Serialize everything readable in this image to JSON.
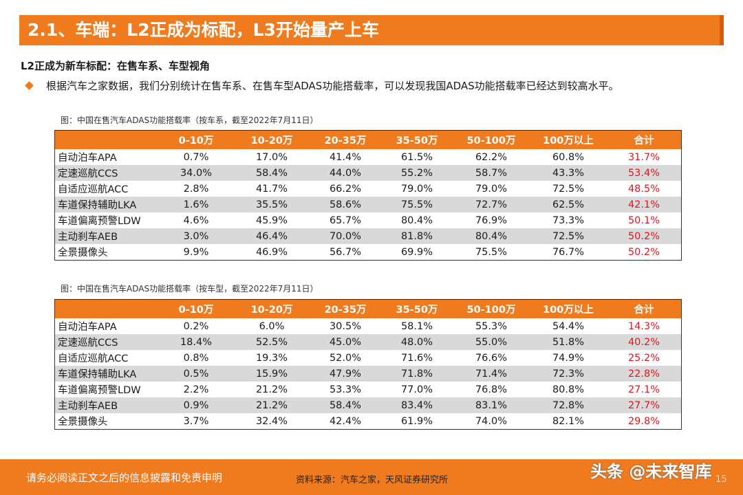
{
  "slide": {
    "title": "2.1、车端：L2正成为标配，L3开始量产上车",
    "subtitle": "L2正成为新车标配：在售车系、车型视角",
    "bullet": "根据汽车之家数据，我们分别统计在售车系、在售车型ADAS功能搭载率，可以发现我国ADAS功能搭载率已经达到较高水平。"
  },
  "colors": {
    "accent": "#f07a1e",
    "total_text": "#e0141e",
    "alt_row": "#d9d9d9"
  },
  "table1": {
    "caption": "图：中国在售汽车ADAS功能搭载率（按车系，截至2022年7月11日）",
    "headers": [
      "",
      "0-10万",
      "10-20万",
      "20-35万",
      "35-50万",
      "50-100万",
      "100万以上",
      "合计"
    ],
    "rows": [
      [
        "自动泊车APA",
        "0.7%",
        "17.0%",
        "41.4%",
        "61.5%",
        "62.2%",
        "60.8%",
        "31.7%"
      ],
      [
        "定速巡航CCS",
        "34.0%",
        "58.4%",
        "44.0%",
        "55.2%",
        "58.7%",
        "43.3%",
        "53.4%"
      ],
      [
        "自适应巡航ACC",
        "2.8%",
        "41.7%",
        "66.2%",
        "79.0%",
        "79.0%",
        "72.5%",
        "48.5%"
      ],
      [
        "车道保持辅助LKA",
        "1.6%",
        "35.5%",
        "58.6%",
        "75.5%",
        "72.7%",
        "62.5%",
        "42.1%"
      ],
      [
        "车道偏离预警LDW",
        "4.6%",
        "45.9%",
        "65.7%",
        "80.4%",
        "76.9%",
        "73.3%",
        "50.1%"
      ],
      [
        "主动刹车AEB",
        "3.0%",
        "46.4%",
        "70.0%",
        "81.8%",
        "80.4%",
        "72.5%",
        "50.2%"
      ],
      [
        "全景摄像头",
        "9.9%",
        "46.9%",
        "56.7%",
        "69.9%",
        "75.5%",
        "76.7%",
        "50.2%"
      ]
    ]
  },
  "table2": {
    "caption": "图：中国在售汽车ADAS功能搭载率（按车型，截至2022年7月11日）",
    "headers": [
      "",
      "0-10万",
      "10-20万",
      "20-35万",
      "35-50万",
      "50-100万",
      "100万以上",
      "合计"
    ],
    "rows": [
      [
        "自动泊车APA",
        "0.2%",
        "6.0%",
        "30.5%",
        "58.1%",
        "55.3%",
        "54.4%",
        "14.3%"
      ],
      [
        "定速巡航CCS",
        "18.4%",
        "52.5%",
        "45.0%",
        "48.0%",
        "55.0%",
        "51.8%",
        "40.2%"
      ],
      [
        "自适应巡航ACC",
        "0.8%",
        "19.3%",
        "52.0%",
        "71.6%",
        "76.6%",
        "74.9%",
        "25.2%"
      ],
      [
        "车道保持辅助LKA",
        "0.5%",
        "15.9%",
        "47.9%",
        "71.8%",
        "71.4%",
        "72.3%",
        "22.8%"
      ],
      [
        "车道偏离预警LDW",
        "2.2%",
        "21.2%",
        "53.3%",
        "77.0%",
        "76.8%",
        "80.8%",
        "27.1%"
      ],
      [
        "主动刹车AEB",
        "0.9%",
        "21.2%",
        "58.4%",
        "83.4%",
        "83.1%",
        "72.8%",
        "27.7%"
      ],
      [
        "全景摄像头",
        "3.7%",
        "32.4%",
        "42.4%",
        "61.9%",
        "74.0%",
        "82.1%",
        "29.8%"
      ]
    ]
  },
  "footer": {
    "disclaimer": "请务必阅读正文之后的信息披露和免责申明",
    "source": "资料来源：汽车之家，天风证券研究所",
    "watermark": "头条 @未来智库",
    "page_number": "15"
  }
}
